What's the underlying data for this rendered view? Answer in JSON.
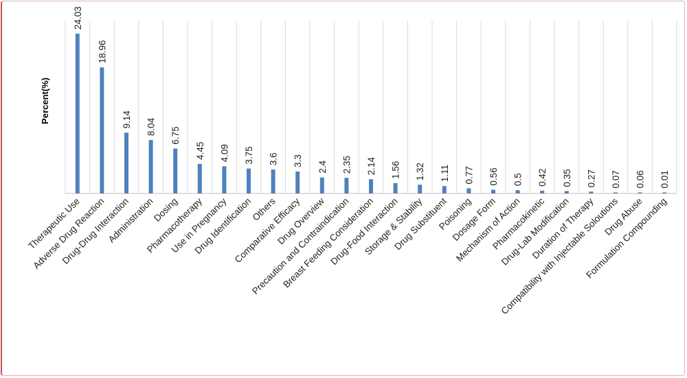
{
  "chart_data": {
    "type": "bar",
    "title": "",
    "xlabel": "",
    "ylabel": "Percent(%)",
    "ylim": [
      0,
      26
    ],
    "grid": "vertical",
    "legend": "none",
    "bar_color": "#4f81bd",
    "categories": [
      "Therapeutic Use",
      "Adverse Drug Reaction",
      "Drug-Drug Interaction",
      "Administration",
      "Dosing",
      "Pharmacotherapy",
      "Use in Pregnancy",
      "Drug Identification",
      "Others",
      "Comparative Efficacy",
      "Drug Overview",
      "Precaution and Contraindication",
      "Breast Feeding Consideration",
      "Drug-Food Interaction",
      "Storage & Stability",
      "Drug Substituent",
      "Poisoning",
      "Dosage Form",
      "Mechanism of Action",
      "Pharmacokinetic",
      "Drug-Lab Modification",
      "Duration of Therapy",
      "Compatibility with Injectable Soloutions",
      "Drug Abuse",
      "Formulation Compounding"
    ],
    "values": [
      24.03,
      18.96,
      9.14,
      8.04,
      6.75,
      4.45,
      4.09,
      3.75,
      3.6,
      3.3,
      2.4,
      2.35,
      2.14,
      1.56,
      1.32,
      1.11,
      0.77,
      0.56,
      0.5,
      0.42,
      0.35,
      0.27,
      0.07,
      0.06,
      0.01
    ],
    "value_labels": [
      "24.03",
      "18.96",
      "9.14",
      "8.04",
      "6.75",
      "4.45",
      "4.09",
      "3.75",
      "3.6",
      "3.3",
      "2.4",
      "2.35",
      "2.14",
      "1.56",
      "1.32",
      "1.11",
      "0.77",
      "0.56",
      "0.5",
      "0.42",
      "0.35",
      "0.27",
      "0.07",
      "0.06",
      "0.01"
    ]
  }
}
